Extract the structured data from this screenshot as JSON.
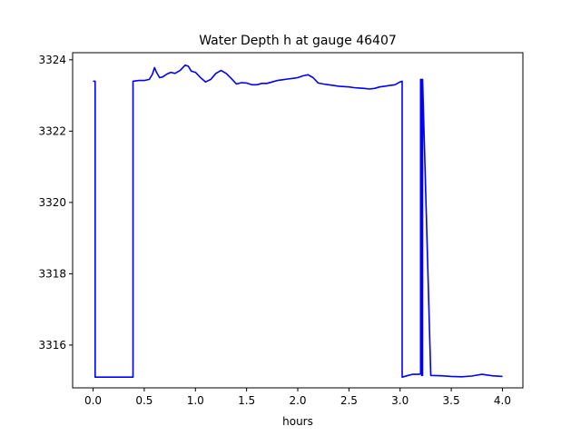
{
  "chart_data": {
    "type": "line",
    "title": "Water Depth h at gauge 46407",
    "xlabel": "hours",
    "ylabel": "",
    "xlim": [
      -0.2,
      4.2
    ],
    "ylim": [
      3314.8,
      3324.2
    ],
    "xticks": [
      0.0,
      0.5,
      1.0,
      1.5,
      2.0,
      2.5,
      3.0,
      3.5,
      4.0
    ],
    "xtick_labels": [
      "0.0",
      "0.5",
      "1.0",
      "1.5",
      "2.0",
      "2.5",
      "3.0",
      "3.5",
      "4.0"
    ],
    "yticks": [
      3316,
      3318,
      3320,
      3322,
      3324
    ],
    "ytick_labels": [
      "3316",
      "3318",
      "3320",
      "3322",
      "3324"
    ],
    "grid": false,
    "series": [
      {
        "name": "",
        "color": "#0000ff",
        "x": [
          0.0,
          0.02,
          0.02,
          0.1,
          0.2,
          0.3,
          0.39,
          0.39,
          0.45,
          0.5,
          0.55,
          0.58,
          0.6,
          0.62,
          0.65,
          0.68,
          0.72,
          0.76,
          0.8,
          0.85,
          0.9,
          0.93,
          0.96,
          1.0,
          1.05,
          1.1,
          1.15,
          1.2,
          1.25,
          1.3,
          1.35,
          1.4,
          1.45,
          1.5,
          1.55,
          1.6,
          1.65,
          1.7,
          1.75,
          1.8,
          1.85,
          1.9,
          1.95,
          2.0,
          2.05,
          2.1,
          2.15,
          2.2,
          2.25,
          2.3,
          2.35,
          2.4,
          2.45,
          2.5,
          2.55,
          2.6,
          2.65,
          2.7,
          2.75,
          2.8,
          2.85,
          2.9,
          2.95,
          3.0,
          3.02,
          3.02,
          3.08,
          3.12,
          3.16,
          3.19,
          3.2,
          3.2,
          3.21,
          3.21,
          3.22,
          3.22,
          3.3,
          3.4,
          3.5,
          3.6,
          3.7,
          3.8,
          3.9,
          4.0
        ],
        "y": [
          3323.4,
          3323.4,
          3315.1,
          3315.1,
          3315.1,
          3315.1,
          3315.1,
          3323.4,
          3323.42,
          3323.42,
          3323.45,
          3323.6,
          3323.78,
          3323.65,
          3323.5,
          3323.52,
          3323.6,
          3323.65,
          3323.62,
          3323.7,
          3323.85,
          3323.82,
          3323.68,
          3323.65,
          3323.5,
          3323.38,
          3323.45,
          3323.62,
          3323.7,
          3323.62,
          3323.48,
          3323.32,
          3323.36,
          3323.35,
          3323.3,
          3323.3,
          3323.34,
          3323.34,
          3323.38,
          3323.42,
          3323.44,
          3323.46,
          3323.48,
          3323.5,
          3323.55,
          3323.58,
          3323.5,
          3323.35,
          3323.32,
          3323.3,
          3323.28,
          3323.26,
          3323.25,
          3323.24,
          3323.22,
          3323.21,
          3323.2,
          3323.18,
          3323.2,
          3323.24,
          3323.26,
          3323.28,
          3323.3,
          3323.38,
          3323.4,
          3315.1,
          3315.15,
          3315.18,
          3315.18,
          3315.18,
          3315.2,
          3323.45,
          3323.45,
          3315.15,
          3315.15,
          3323.45,
          3315.15,
          3315.14,
          3315.12,
          3315.11,
          3315.13,
          3315.18,
          3315.14,
          3315.12
        ]
      }
    ]
  }
}
